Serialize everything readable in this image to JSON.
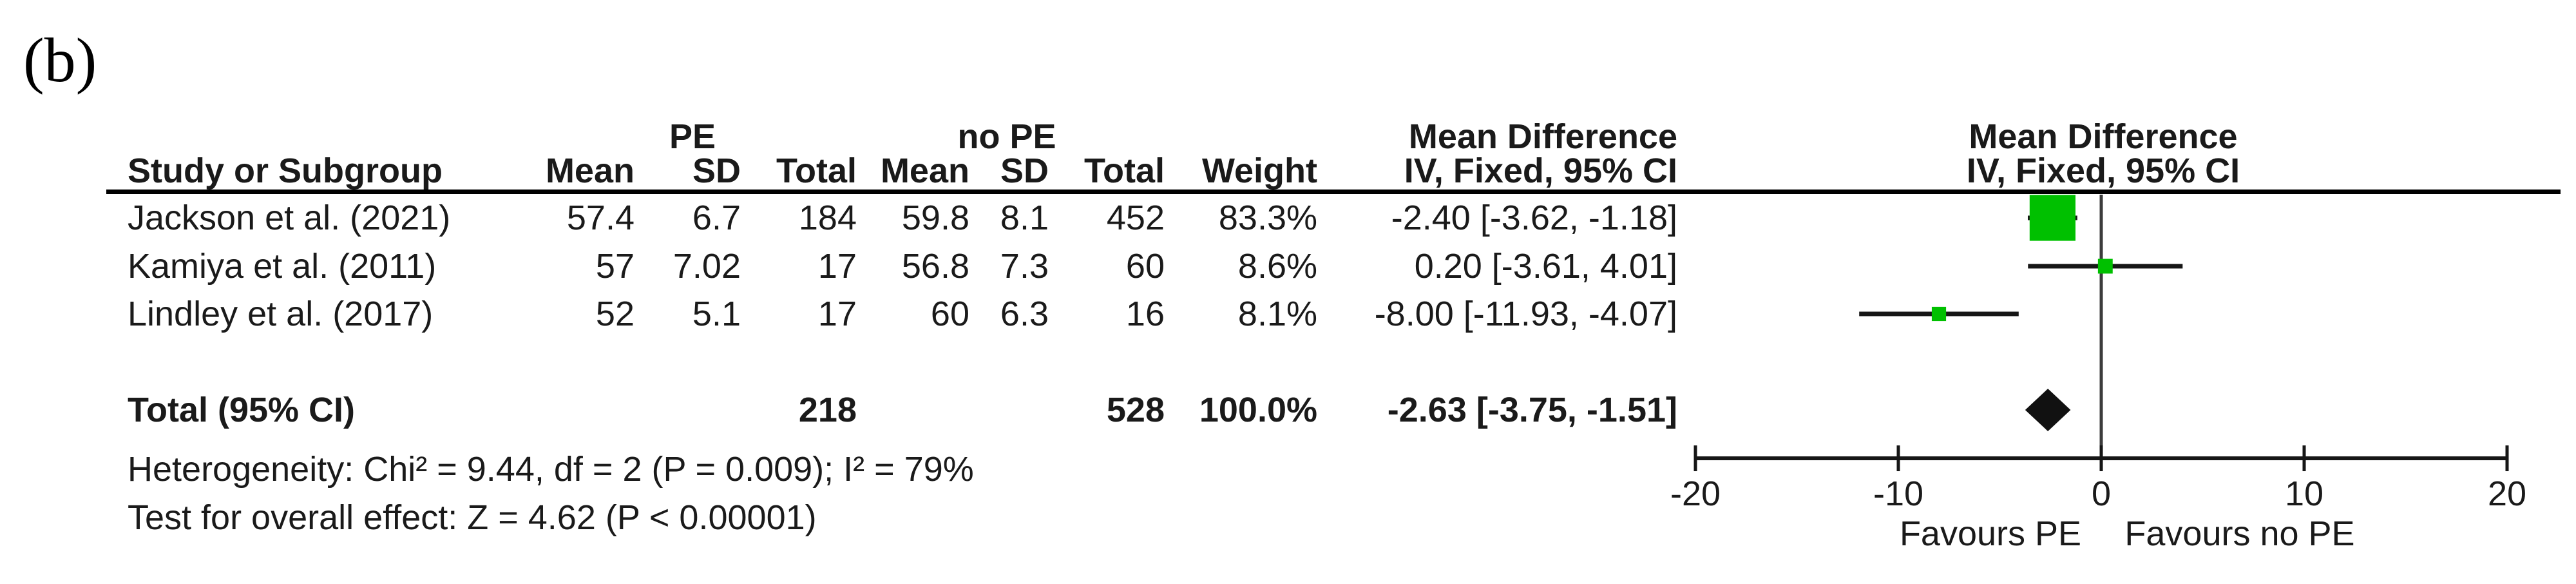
{
  "panel_label": "(b)",
  "colors": {
    "effect_square_green": "#00c000",
    "ci_line": "#161616",
    "zero_line": "#3c3c3c",
    "diamond": "#111111",
    "text": "#1a1a1a"
  },
  "table": {
    "group_headers": {
      "pe": "PE",
      "no_pe": "no PE",
      "md_left": "Mean Difference",
      "md_right": "Mean Difference"
    },
    "col_headers": {
      "study": "Study or Subgroup",
      "mean1": "Mean",
      "sd1": "SD",
      "total1": "Total",
      "mean2": "Mean",
      "sd2": "SD",
      "total2": "Total",
      "weight": "Weight",
      "iv_left": "IV, Fixed, 95% CI",
      "iv_right": "IV, Fixed, 95% CI"
    },
    "rows": [
      {
        "study": "Jackson et al. (2021)",
        "mean1": "57.4",
        "sd1": "6.7",
        "total1": "184",
        "mean2": "59.8",
        "sd2": "8.1",
        "total2": "452",
        "weight": "83.3%",
        "iv": "-2.40 [-3.62, -1.18]"
      },
      {
        "study": "Kamiya et al. (2011)",
        "mean1": "57",
        "sd1": "7.02",
        "total1": "17",
        "mean2": "56.8",
        "sd2": "7.3",
        "total2": "60",
        "weight": "8.6%",
        "iv": "0.20 [-3.61, 4.01]"
      },
      {
        "study": "Lindley et al. (2017)",
        "mean1": "52",
        "sd1": "5.1",
        "total1": "17",
        "mean2": "60",
        "sd2": "6.3",
        "total2": "16",
        "weight": "8.1%",
        "iv": "-8.00 [-11.93, -4.07]"
      }
    ],
    "total_row": {
      "label": "Total (95% CI)",
      "total1": "218",
      "total2": "528",
      "weight": "100.0%",
      "iv": "-2.63 [-3.75, -1.51]"
    },
    "footer": {
      "heterogeneity": "Heterogeneity: Chi² = 9.44, df = 2 (P = 0.009); I² = 79%",
      "overall_effect": "Test for overall effect: Z = 4.62 (P < 0.00001)"
    }
  },
  "chart_data": {
    "type": "forest",
    "effect_measure": "Mean Difference, IV, Fixed, 95% CI",
    "x_axis": {
      "min": -20,
      "max": 20,
      "ticks": [
        -20,
        -10,
        0,
        10,
        20
      ],
      "tick_labels": [
        "-20",
        "-10",
        "0",
        "10",
        "20"
      ]
    },
    "favours_left": "Favours PE",
    "favours_right": "Favours no PE",
    "studies": [
      {
        "name": "Jackson et al. (2021)",
        "md": -2.4,
        "ci_low": -3.62,
        "ci_high": -1.18,
        "weight_pct": 83.3
      },
      {
        "name": "Kamiya et al. (2011)",
        "md": 0.2,
        "ci_low": -3.61,
        "ci_high": 4.01,
        "weight_pct": 8.6
      },
      {
        "name": "Lindley et al. (2017)",
        "md": -8.0,
        "ci_low": -11.93,
        "ci_high": -4.07,
        "weight_pct": 8.1
      }
    ],
    "summary": {
      "label": "Total (95% CI)",
      "md": -2.63,
      "ci_low": -3.75,
      "ci_high": -1.51,
      "weight_pct": 100.0
    }
  }
}
